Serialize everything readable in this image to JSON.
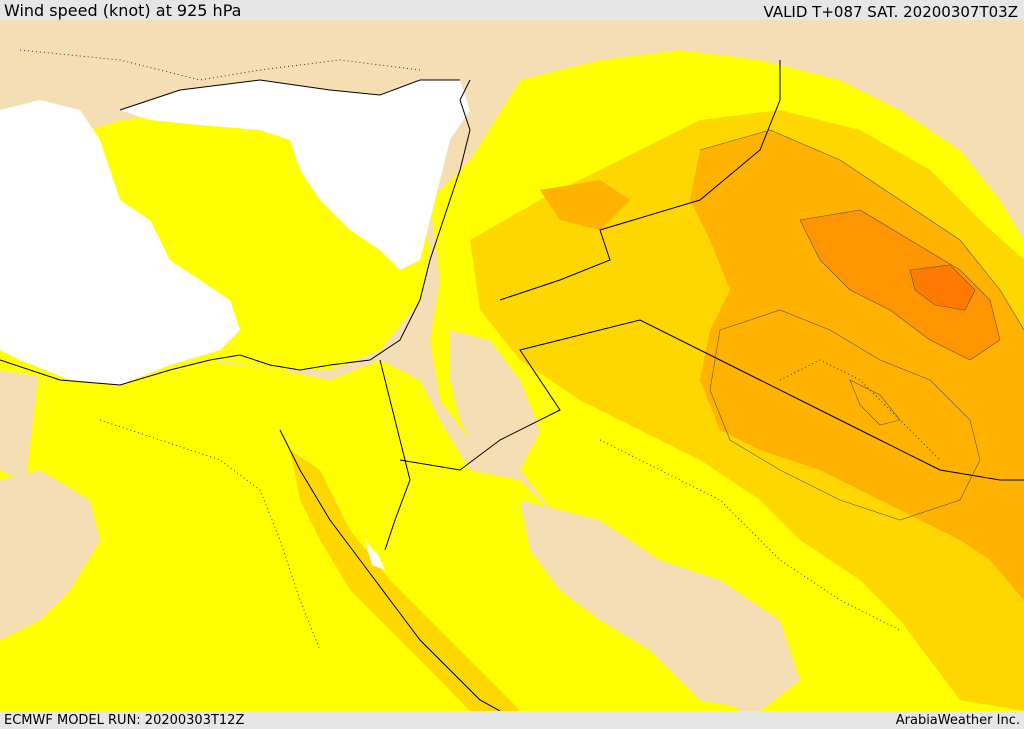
{
  "header": {
    "title": "Wind speed (knot) at 925 hPa",
    "valid": "VALID T+087 SAT. 20200307T03Z"
  },
  "footer": {
    "model_run": "ECMWF MODEL RUN: 20200303T12Z",
    "credit": "ArabiaWeather Inc."
  },
  "palette": {
    "calm": "#f5deb3",
    "level1": "#ffff00",
    "level2": "#ffd700",
    "level3": "#ffb300",
    "level4": "#ff9500",
    "level5": "#ff7a00",
    "sea_missing": "#ffffff"
  }
}
